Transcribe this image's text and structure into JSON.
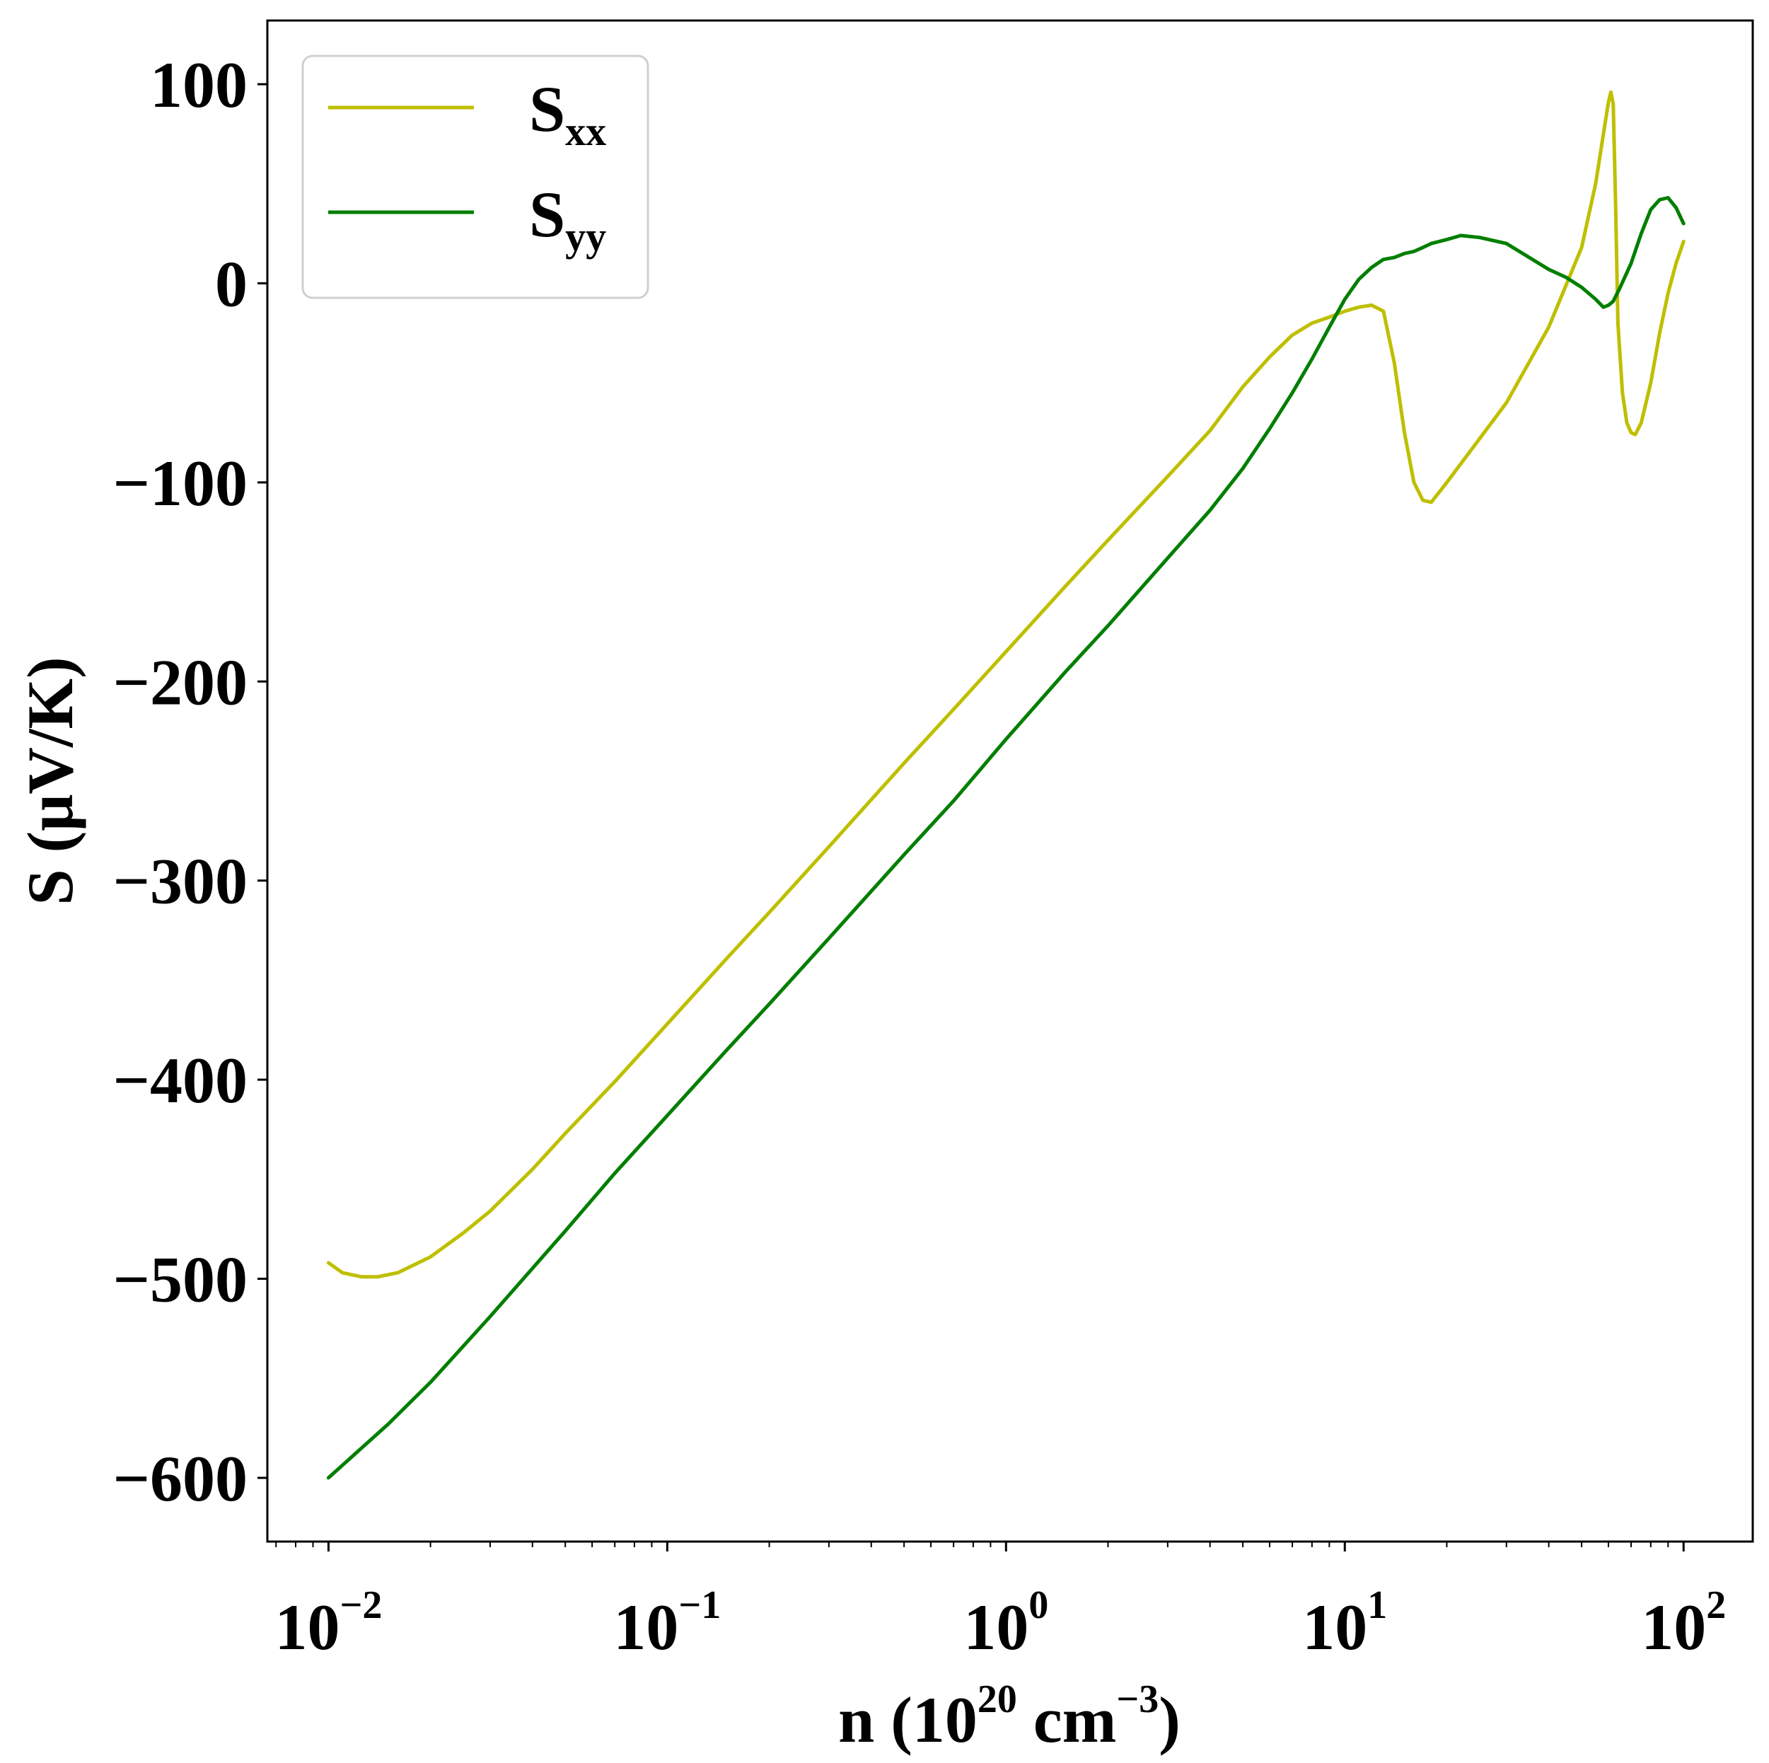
{
  "chart_data": {
    "type": "line",
    "xlabel": {
      "base": "n (10",
      "exp1": "20",
      "mid": " cm",
      "exp2": "−3",
      "end": ")"
    },
    "ylabel": "S (μV/K)",
    "x_scale": "log",
    "xlim": [
      0.0066,
      160
    ],
    "ylim": [
      -632,
      132
    ],
    "grid": false,
    "legend_placement": "top-left",
    "x_ticks": [
      {
        "value": 0.01,
        "base": "10",
        "exp": "−2"
      },
      {
        "value": 0.1,
        "base": "10",
        "exp": "−1"
      },
      {
        "value": 1,
        "base": "10",
        "exp": "0"
      },
      {
        "value": 10,
        "base": "10",
        "exp": "1"
      },
      {
        "value": 100,
        "base": "10",
        "exp": "2"
      }
    ],
    "y_ticks": [
      {
        "value": 100,
        "label": "100"
      },
      {
        "value": 0,
        "label": "0"
      },
      {
        "value": -100,
        "label": "−100"
      },
      {
        "value": -200,
        "label": "−200"
      },
      {
        "value": -300,
        "label": "−300"
      },
      {
        "value": -400,
        "label": "−400"
      },
      {
        "value": -500,
        "label": "−500"
      },
      {
        "value": -600,
        "label": "−600"
      }
    ],
    "series": [
      {
        "name": "S",
        "subscript": "xx",
        "color": "#bfbf00",
        "points": [
          [
            0.01,
            -492
          ],
          [
            0.011,
            -497
          ],
          [
            0.0125,
            -499
          ],
          [
            0.014,
            -499
          ],
          [
            0.016,
            -497
          ],
          [
            0.02,
            -489
          ],
          [
            0.025,
            -477
          ],
          [
            0.03,
            -466
          ],
          [
            0.04,
            -445
          ],
          [
            0.05,
            -427
          ],
          [
            0.07,
            -401
          ],
          [
            0.1,
            -372
          ],
          [
            0.15,
            -339
          ],
          [
            0.2,
            -316
          ],
          [
            0.3,
            -283
          ],
          [
            0.5,
            -241
          ],
          [
            0.7,
            -214
          ],
          [
            1.0,
            -185
          ],
          [
            1.5,
            -152
          ],
          [
            2.0,
            -129
          ],
          [
            3.0,
            -97
          ],
          [
            4.0,
            -74
          ],
          [
            5.0,
            -52
          ],
          [
            6.0,
            -37
          ],
          [
            7.0,
            -26
          ],
          [
            8.0,
            -20
          ],
          [
            9.0,
            -17
          ],
          [
            10.0,
            -14
          ],
          [
            11.0,
            -12
          ],
          [
            12.0,
            -11
          ],
          [
            13.0,
            -14
          ],
          [
            14.0,
            -40
          ],
          [
            15.0,
            -75
          ],
          [
            16.0,
            -100
          ],
          [
            17.0,
            -109
          ],
          [
            18.0,
            -110
          ],
          [
            20.0,
            -100
          ],
          [
            25.0,
            -78
          ],
          [
            30.0,
            -60
          ],
          [
            40.0,
            -22
          ],
          [
            50.0,
            18
          ],
          [
            55.0,
            50
          ],
          [
            58.0,
            75
          ],
          [
            60.0,
            91
          ],
          [
            61.0,
            96
          ],
          [
            62.0,
            90
          ],
          [
            63.0,
            40
          ],
          [
            64.0,
            -20
          ],
          [
            66.0,
            -55
          ],
          [
            68.0,
            -70
          ],
          [
            70.0,
            -75
          ],
          [
            72.0,
            -76
          ],
          [
            75.0,
            -70
          ],
          [
            80.0,
            -50
          ],
          [
            85.0,
            -25
          ],
          [
            90.0,
            -5
          ],
          [
            95.0,
            10
          ],
          [
            100.0,
            21
          ]
        ]
      },
      {
        "name": "S",
        "subscript": "yy",
        "color": "#007f00",
        "points": [
          [
            0.01,
            -600
          ],
          [
            0.015,
            -573
          ],
          [
            0.02,
            -552
          ],
          [
            0.03,
            -519
          ],
          [
            0.05,
            -476
          ],
          [
            0.07,
            -447
          ],
          [
            0.1,
            -418
          ],
          [
            0.15,
            -385
          ],
          [
            0.2,
            -362
          ],
          [
            0.3,
            -329
          ],
          [
            0.5,
            -287
          ],
          [
            0.7,
            -260
          ],
          [
            1.0,
            -229
          ],
          [
            1.5,
            -195
          ],
          [
            2.0,
            -172
          ],
          [
            3.0,
            -138
          ],
          [
            4.0,
            -114
          ],
          [
            5.0,
            -93
          ],
          [
            6.0,
            -73
          ],
          [
            7.0,
            -55
          ],
          [
            8.0,
            -38
          ],
          [
            9.0,
            -22
          ],
          [
            10.0,
            -8
          ],
          [
            11.0,
            2
          ],
          [
            12.0,
            8
          ],
          [
            13.0,
            12
          ],
          [
            14.0,
            13
          ],
          [
            15.0,
            15
          ],
          [
            16.0,
            16
          ],
          [
            17.0,
            18
          ],
          [
            18.0,
            20
          ],
          [
            20.0,
            22
          ],
          [
            22.0,
            24
          ],
          [
            25.0,
            23
          ],
          [
            30.0,
            20
          ],
          [
            35.0,
            13
          ],
          [
            40.0,
            7
          ],
          [
            45.0,
            3
          ],
          [
            50.0,
            -2
          ],
          [
            55.0,
            -8
          ],
          [
            58.0,
            -12
          ],
          [
            60.0,
            -11
          ],
          [
            62.0,
            -9
          ],
          [
            65.0,
            -2
          ],
          [
            70.0,
            10
          ],
          [
            75.0,
            25
          ],
          [
            80.0,
            37
          ],
          [
            85.0,
            42
          ],
          [
            90.0,
            43
          ],
          [
            95.0,
            38
          ],
          [
            100.0,
            30
          ]
        ]
      }
    ]
  }
}
